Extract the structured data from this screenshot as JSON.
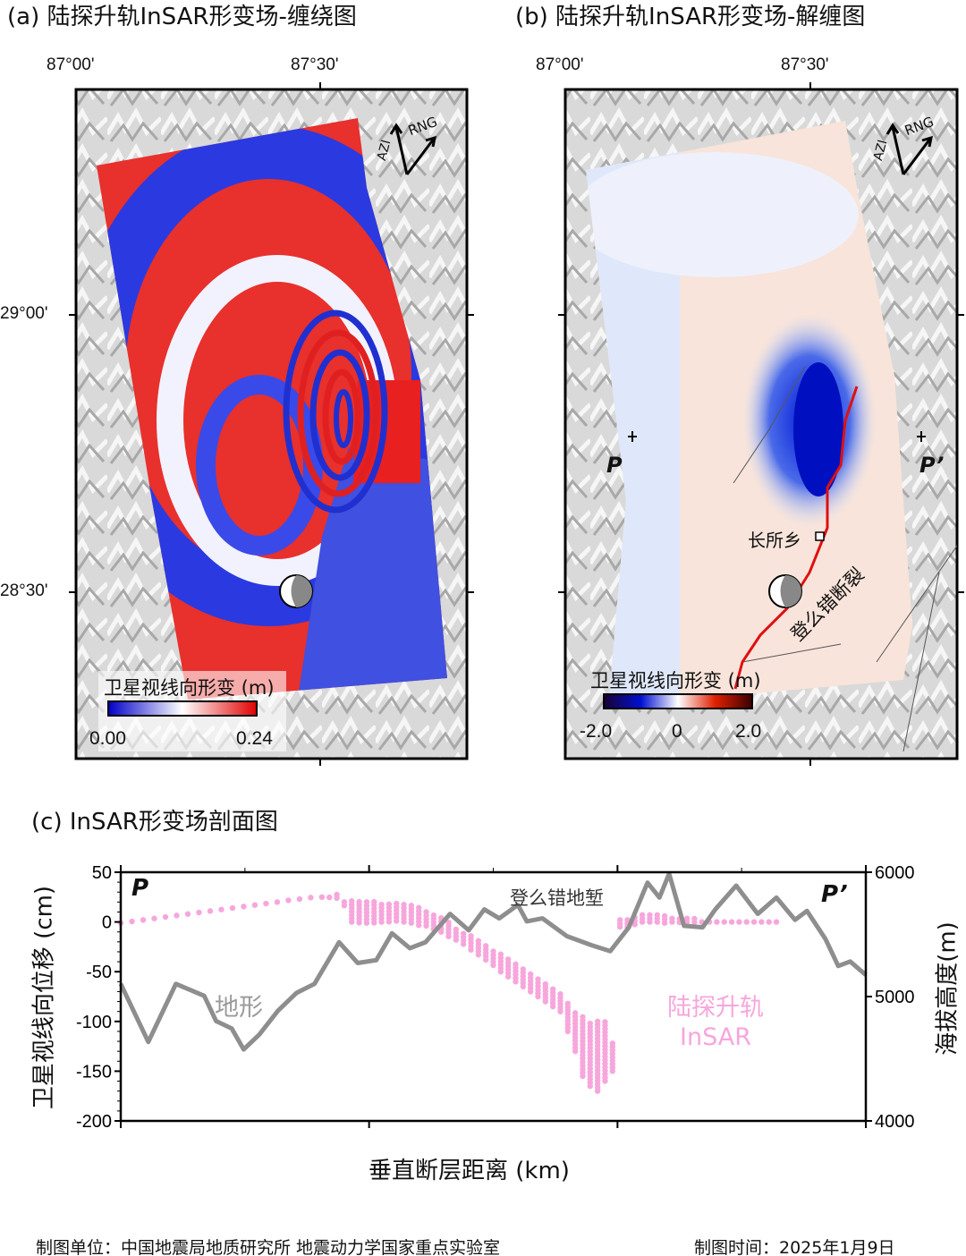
{
  "panels": {
    "a": {
      "title": "(a) 陆探升轨InSAR形变场-缠绕图",
      "lon_ticks": [
        "87°00'",
        "87°30'"
      ],
      "lat_ticks": [
        "29°00'",
        "28°30'"
      ],
      "arrow": {
        "azi": "AZI",
        "rng": "RNG"
      },
      "colorbar": {
        "label": "卫星视线向形变 (m)",
        "min": "0.00",
        "max": "0.24",
        "colors": [
          "#0000c8",
          "#ffffff",
          "#e00000"
        ]
      }
    },
    "b": {
      "title": "(b) 陆探升轨InSAR形变场-解缠图",
      "lon_ticks": [
        "87°00'",
        "87°30'"
      ],
      "arrow": {
        "azi": "AZI",
        "rng": "RNG"
      },
      "colorbar": {
        "label": "卫星视线向形变 (m)",
        "ticks": [
          "-2.0",
          "0",
          "2.0"
        ],
        "colors": [
          "#1a0033",
          "#0010d0",
          "#ffffff",
          "#e02000",
          "#3a0000"
        ]
      },
      "profile_start": "P",
      "profile_end": "P’",
      "town": "长所乡",
      "fault": "登么错断裂",
      "fault_color": "#e01010"
    }
  },
  "chart_data": {
    "type": "line",
    "title": "(c) InSAR形变场剖面图",
    "xlabel": "垂直断层距离 (km)",
    "ylabel": "卫星视线向位移 (cm)",
    "y2label": "海拔高度(m)",
    "ylim": [
      -200,
      50
    ],
    "y2lim": [
      4000,
      6000
    ],
    "xlim": [
      0,
      100
    ],
    "yticks": [
      "50",
      "0",
      "-50",
      "-100",
      "-150",
      "-200"
    ],
    "y2ticks": [
      "6000",
      "5000",
      "4000"
    ],
    "start_label": "P",
    "end_label": "P’",
    "annotation": "登么错地堑",
    "series": [
      {
        "name": "地形",
        "axis": "right",
        "color": "#8e8e8e",
        "x": [
          0,
          3.7,
          7.4,
          11.2,
          12.8,
          14.9,
          16.5,
          18.6,
          21.1,
          23.6,
          26,
          29.3,
          31.8,
          34.3,
          36.4,
          38.8,
          40.9,
          44.2,
          46.7,
          48.8,
          50.8,
          53.3,
          54.5,
          56.6,
          59.9,
          63.2,
          65.7,
          68.2,
          70.7,
          72.3,
          73.6,
          75.6,
          78.1,
          79.8,
          82.6,
          85.5,
          88,
          90.5,
          92.1,
          94.6,
          96.3,
          97.9,
          100
        ],
        "y": [
          5102,
          4635,
          5102,
          5006,
          4803,
          4743,
          4575,
          4695,
          4886,
          5030,
          5102,
          5437,
          5270,
          5293,
          5509,
          5389,
          5437,
          5665,
          5533,
          5701,
          5629,
          5737,
          5605,
          5629,
          5485,
          5413,
          5365,
          5557,
          5916,
          5796,
          5988,
          5569,
          5557,
          5701,
          5892,
          5665,
          5796,
          5617,
          5689,
          5461,
          5246,
          5282,
          5174
        ]
      },
      {
        "name": "陆探升轨 InSAR",
        "axis": "left",
        "color": "#f7a6dc",
        "x": [
          0,
          3,
          6,
          9,
          12,
          15,
          18,
          21,
          24,
          27,
          29,
          31,
          33,
          35,
          37,
          39,
          41,
          43,
          45,
          47,
          49,
          51,
          53,
          55,
          57,
          59,
          60,
          61,
          62,
          63,
          64,
          65,
          66,
          67,
          68,
          70,
          72,
          74,
          76,
          78,
          80,
          82,
          84,
          86,
          88
        ],
        "low": [
          -1,
          2,
          5,
          8,
          11,
          14,
          17,
          20,
          23,
          25,
          24,
          0,
          -1,
          0,
          1,
          -1,
          -4,
          -10,
          -18,
          -28,
          -38,
          -50,
          -60,
          -70,
          -80,
          -90,
          -110,
          -130,
          -155,
          -165,
          -170,
          -160,
          -150,
          -5,
          -5,
          0,
          0,
          0,
          0,
          0,
          0,
          0,
          0,
          0,
          0
        ],
        "high": [
          -1,
          2,
          5,
          8,
          11,
          14,
          17,
          20,
          24,
          28,
          28,
          22,
          20,
          20,
          20,
          18,
          12,
          5,
          -5,
          -12,
          -22,
          -32,
          -42,
          -52,
          -62,
          -72,
          -80,
          -90,
          -95,
          -100,
          -100,
          -100,
          -120,
          5,
          5,
          10,
          10,
          6,
          4,
          3,
          3,
          3,
          3,
          3,
          3
        ]
      }
    ]
  },
  "footer": {
    "unit": "制图单位：中国地震局地质研究所 地震动力学国家重点实验室",
    "date": "制图时间：2025年1月9日"
  }
}
